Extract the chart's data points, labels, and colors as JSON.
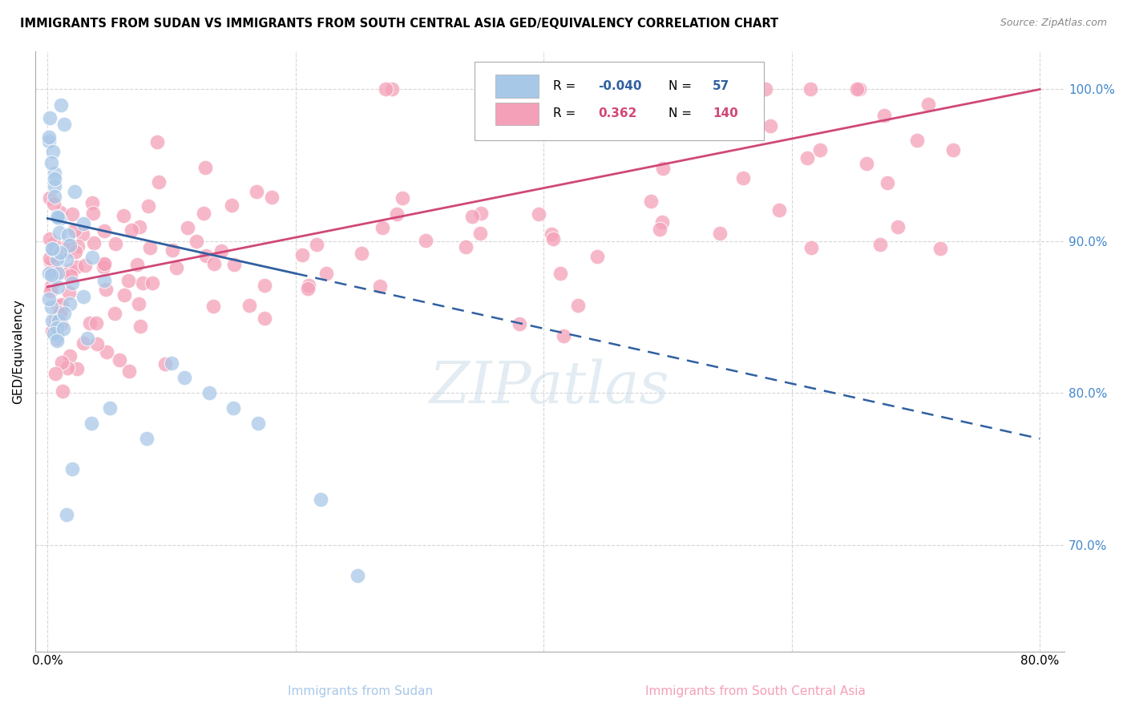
{
  "title": "IMMIGRANTS FROM SUDAN VS IMMIGRANTS FROM SOUTH CENTRAL ASIA GED/EQUIVALENCY CORRELATION CHART",
  "source": "Source: ZipAtlas.com",
  "xlabel_blue": "Immigrants from Sudan",
  "xlabel_pink": "Immigrants from South Central Asia",
  "ylabel": "GED/Equivalency",
  "xlim": [
    -1.0,
    82.0
  ],
  "ylim": [
    63.0,
    102.5
  ],
  "blue_R": -0.04,
  "blue_N": 57,
  "pink_R": 0.362,
  "pink_N": 140,
  "blue_color": "#a8c8e8",
  "pink_color": "#f4a0b8",
  "blue_line_color": "#3060a0",
  "pink_line_color": "#e0407080",
  "pink_line_solid": "#d04878",
  "watermark": "ZIPatlas",
  "tick_label_color": "#4488cc",
  "y_ticks": [
    70.0,
    80.0,
    90.0,
    100.0
  ],
  "y_tick_labels": [
    "70.0%",
    "80.0%",
    "90.0%",
    "100.0%"
  ]
}
